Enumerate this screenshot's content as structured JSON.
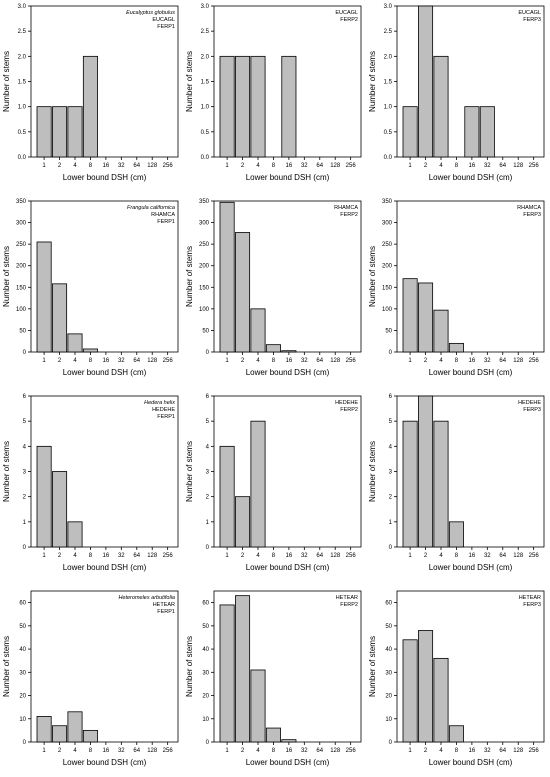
{
  "chart_data": [
    {
      "type": "bar",
      "species": "Eucalyptus globulus",
      "code": "EUCAGL",
      "plot": "FERP1",
      "categories": [
        "1",
        "2",
        "4",
        "8",
        "16",
        "32",
        "64",
        "128",
        "256"
      ],
      "values": [
        1,
        1,
        1,
        2,
        0,
        0,
        0,
        0,
        0
      ],
      "xlabel": "Lower bound DSH (cm)",
      "ylabel": "Number of stems",
      "ylim": [
        0,
        3
      ],
      "yticks": [
        "0.0",
        "0.5",
        "1.0",
        "1.5",
        "2.0",
        "2.5",
        "3.0"
      ]
    },
    {
      "type": "bar",
      "species": "",
      "code": "EUCAGL",
      "plot": "FERP2",
      "categories": [
        "1",
        "2",
        "4",
        "8",
        "16",
        "32",
        "64",
        "128",
        "256"
      ],
      "values": [
        2,
        2,
        2,
        0,
        2,
        0,
        0,
        0,
        0
      ],
      "xlabel": "Lower bound DSH (cm)",
      "ylabel": "Number of stems",
      "ylim": [
        0,
        3
      ],
      "yticks": [
        "0.0",
        "0.5",
        "1.0",
        "1.5",
        "2.0",
        "2.5",
        "3.0"
      ]
    },
    {
      "type": "bar",
      "species": "",
      "code": "EUCAGL",
      "plot": "FERP3",
      "categories": [
        "1",
        "2",
        "4",
        "8",
        "16",
        "32",
        "64",
        "128",
        "256"
      ],
      "values": [
        1,
        3,
        2,
        0,
        1,
        1,
        0,
        0,
        0
      ],
      "xlabel": "Lower bound DSH (cm)",
      "ylabel": "Number of stems",
      "ylim": [
        0,
        3
      ],
      "yticks": [
        "0.0",
        "0.5",
        "1.0",
        "1.5",
        "2.0",
        "2.5",
        "3.0"
      ]
    },
    {
      "type": "bar",
      "species": "Frangula californica",
      "code": "RHAMCA",
      "plot": "FERP1",
      "categories": [
        "1",
        "2",
        "4",
        "8",
        "16",
        "32",
        "64",
        "128",
        "256"
      ],
      "values": [
        255,
        158,
        42,
        7,
        0,
        0,
        0,
        0,
        0
      ],
      "xlabel": "Lower bound DSH (cm)",
      "ylabel": "Number of stems",
      "ylim": [
        0,
        350
      ],
      "yticks": [
        "0",
        "50",
        "100",
        "150",
        "200",
        "250",
        "300",
        "350"
      ]
    },
    {
      "type": "bar",
      "species": "",
      "code": "RHAMCA",
      "plot": "FERP2",
      "categories": [
        "1",
        "2",
        "4",
        "8",
        "16",
        "32",
        "64",
        "128",
        "256"
      ],
      "values": [
        347,
        277,
        100,
        17,
        3,
        0,
        0,
        0,
        0
      ],
      "xlabel": "Lower bound DSH (cm)",
      "ylabel": "Number of stems",
      "ylim": [
        0,
        350
      ],
      "yticks": [
        "0",
        "50",
        "100",
        "150",
        "200",
        "250",
        "300",
        "350"
      ]
    },
    {
      "type": "bar",
      "species": "",
      "code": "RHAMCA",
      "plot": "FERP3",
      "categories": [
        "1",
        "2",
        "4",
        "8",
        "16",
        "32",
        "64",
        "128",
        "256"
      ],
      "values": [
        170,
        160,
        97,
        20,
        0,
        0,
        0,
        0,
        0
      ],
      "xlabel": "Lower bound DSH (cm)",
      "ylabel": "Number of stems",
      "ylim": [
        0,
        350
      ],
      "yticks": [
        "0",
        "50",
        "100",
        "150",
        "200",
        "250",
        "300",
        "350"
      ]
    },
    {
      "type": "bar",
      "species": "Hedera helix",
      "code": "HEDEHE",
      "plot": "FERP1",
      "categories": [
        "1",
        "2",
        "4",
        "8",
        "16",
        "32",
        "64",
        "128",
        "256"
      ],
      "values": [
        4,
        3,
        1,
        0,
        0,
        0,
        0,
        0,
        0
      ],
      "xlabel": "Lower bound DSH (cm)",
      "ylabel": "Number of stems",
      "ylim": [
        0,
        6
      ],
      "yticks": [
        "0",
        "1",
        "2",
        "3",
        "4",
        "5",
        "6"
      ]
    },
    {
      "type": "bar",
      "species": "",
      "code": "HEDEHE",
      "plot": "FERP2",
      "categories": [
        "1",
        "2",
        "4",
        "8",
        "16",
        "32",
        "64",
        "128",
        "256"
      ],
      "values": [
        4,
        2,
        5,
        0,
        0,
        0,
        0,
        0,
        0
      ],
      "xlabel": "Lower bound DSH (cm)",
      "ylabel": "Number of stems",
      "ylim": [
        0,
        6
      ],
      "yticks": [
        "0",
        "1",
        "2",
        "3",
        "4",
        "5",
        "6"
      ]
    },
    {
      "type": "bar",
      "species": "",
      "code": "HEDEHE",
      "plot": "FERP3",
      "categories": [
        "1",
        "2",
        "4",
        "8",
        "16",
        "32",
        "64",
        "128",
        "256"
      ],
      "values": [
        5,
        6,
        5,
        1,
        0,
        0,
        0,
        0,
        0
      ],
      "xlabel": "Lower bound DSH (cm)",
      "ylabel": "Number of stems",
      "ylim": [
        0,
        6
      ],
      "yticks": [
        "0",
        "1",
        "2",
        "3",
        "4",
        "5",
        "6"
      ]
    },
    {
      "type": "bar",
      "species": "Heteromeles arbutifolia",
      "code": "HETEAR",
      "plot": "FERP1",
      "categories": [
        "1",
        "2",
        "4",
        "8",
        "16",
        "32",
        "64",
        "128",
        "256"
      ],
      "values": [
        11,
        7,
        13,
        5,
        0,
        0,
        0,
        0,
        0
      ],
      "xlabel": "Lower bound DSH (cm)",
      "ylabel": "Number of stems",
      "ylim": [
        0,
        65
      ],
      "yticks": [
        "0",
        "10",
        "20",
        "30",
        "40",
        "50",
        "60"
      ]
    },
    {
      "type": "bar",
      "species": "",
      "code": "HETEAR",
      "plot": "FERP2",
      "categories": [
        "1",
        "2",
        "4",
        "8",
        "16",
        "32",
        "64",
        "128",
        "256"
      ],
      "values": [
        59,
        63,
        31,
        6,
        1,
        0,
        0,
        0,
        0
      ],
      "xlabel": "Lower bound DSH (cm)",
      "ylabel": "Number of stems",
      "ylim": [
        0,
        65
      ],
      "yticks": [
        "0",
        "10",
        "20",
        "30",
        "40",
        "50",
        "60"
      ]
    },
    {
      "type": "bar",
      "species": "",
      "code": "HETEAR",
      "plot": "FERP3",
      "categories": [
        "1",
        "2",
        "4",
        "8",
        "16",
        "32",
        "64",
        "128",
        "256"
      ],
      "values": [
        44,
        48,
        36,
        7,
        0,
        0,
        0,
        0,
        0
      ],
      "xlabel": "Lower bound DSH (cm)",
      "ylabel": "Number of stems",
      "ylim": [
        0,
        65
      ],
      "yticks": [
        "0",
        "10",
        "20",
        "30",
        "40",
        "50",
        "60"
      ]
    }
  ],
  "style": {
    "bar_fill": "#bebebe",
    "bar_stroke": "#000000",
    "frame_stroke": "#000000"
  }
}
